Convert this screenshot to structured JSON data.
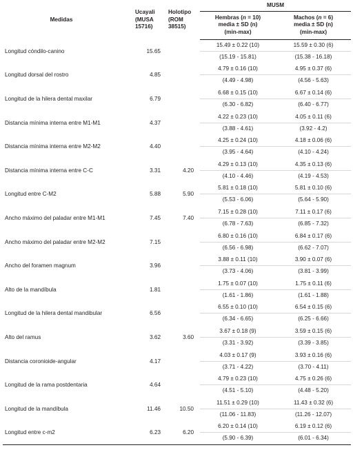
{
  "headers": {
    "medidas": "Medidas",
    "ucayali_lines": [
      "Ucayali",
      "(MUSA",
      "15716)"
    ],
    "holotipo_lines": [
      "Holotipo",
      "(ROM",
      "38515)"
    ],
    "musm": "MUSM",
    "hembras": {
      "pre": "Hembras (",
      "n": "n",
      "post": " = 10)",
      "line2": "media ± SD (n)",
      "line3": "(min-max)"
    },
    "machos": {
      "pre": "Machos (",
      "n": "n",
      "post": " = 6)",
      "line2": "media ± SD (n)",
      "line3": "(min-max)"
    }
  },
  "rows": [
    {
      "name": "Longitud cóndilo-canino",
      "ucayali": "15.65",
      "holotipo": "",
      "hembras": "15.49 ± 0.22 (10)",
      "hembras_range": "(15.19 - 15.81)",
      "machos": "15.59 ± 0.30 (6)",
      "machos_range": "(15.38 - 16.18)"
    },
    {
      "name": "Longitud dorsal del rostro",
      "ucayali": "4.85",
      "holotipo": "",
      "hembras": "4.79 ± 0.16 (10)",
      "hembras_range": "(4.49 - 4.98)",
      "machos": "4.95 ± 0.37 (6)",
      "machos_range": "(4.56 - 5.63)"
    },
    {
      "name": "Longitud de la hilera dental maxilar",
      "ucayali": "6.79",
      "holotipo": "",
      "hembras": "6.68 ± 0.15 (10)",
      "hembras_range": "(6.30 - 6.82)",
      "machos": "6.67 ± 0.14 (6)",
      "machos_range": "(6.40 - 6.77)"
    },
    {
      "name": "Distancia mínima interna entre M1-M1",
      "ucayali": "4.37",
      "holotipo": "",
      "hembras": "4.22 ± 0.23 (10)",
      "hembras_range": "(3.88 - 4.61)",
      "machos": "4.05 ± 0.11 (6)",
      "machos_range": "(3.92 - 4.2)"
    },
    {
      "name": "Distancia mínima interna entre M2-M2",
      "ucayali": "4.40",
      "holotipo": "",
      "hembras": "4.25 ± 0.24 (10)",
      "hembras_range": "(3.95 - 4.64)",
      "machos": "4.18 ± 0.06 (6)",
      "machos_range": "(4.10 - 4.24)"
    },
    {
      "name": "Distancia mínima interna entre C-C",
      "ucayali": "3.31",
      "holotipo": "4.20",
      "hembras": "4.29 ± 0.13 (10)",
      "hembras_range": "(4.10 - 4.46)",
      "machos": "4.35 ± 0.13 (6)",
      "machos_range": "(4.19 - 4.53)"
    },
    {
      "name": "Longitud entre C-M2",
      "ucayali": "5.88",
      "holotipo": "5.90",
      "hembras": "5.81 ± 0.18 (10)",
      "hembras_range": "(5.53 - 6.06)",
      "machos": "5.81 ± 0.10 (6)",
      "machos_range": "(5.64 - 5.90)"
    },
    {
      "name": "Ancho máximo del paladar entre M1-M1",
      "ucayali": "7.45",
      "holotipo": "7.40",
      "hembras": "7.15 ± 0.28 (10)",
      "hembras_range": "(6.78 - 7.63)",
      "machos": "7.11 ± 0.17 (6)",
      "machos_range": "(6.85 - 7.32)"
    },
    {
      "name": "Ancho máximo del paladar entre M2-M2",
      "ucayali": "7.15",
      "holotipo": "",
      "hembras": "6.80 ± 0.16 (10)",
      "hembras_range": "(6.56 - 6.98)",
      "machos": "6.84 ± 0.17 (6)",
      "machos_range": "(6.62 - 7.07)"
    },
    {
      "name": "Ancho del foramen magnum",
      "ucayali": "3.96",
      "holotipo": "",
      "hembras": "3.88 ± 0.11 (10)",
      "hembras_range": "(3.73 - 4.06)",
      "machos": "3.90 ± 0.07 (6)",
      "machos_range": "(3.81 - 3.99)"
    },
    {
      "name": "Alto de la mandíbula",
      "ucayali": "1.81",
      "holotipo": "",
      "hembras": "1.75 ± 0.07 (10)",
      "hembras_range": "(1.61 - 1.86)",
      "machos": "1.75 ± 0.11 (6)",
      "machos_range": "(1.61 - 1.88)"
    },
    {
      "name": "Longitud de la hilera dental mandibular",
      "ucayali": "6.56",
      "holotipo": "",
      "hembras": "6.55 ± 0.10 (10)",
      "hembras_range": "(6.34 - 6.65)",
      "machos": "6.54 ± 0.15 (6)",
      "machos_range": "(6.25 - 6.66)"
    },
    {
      "name": "Alto del ramus",
      "ucayali": "3.62",
      "holotipo": "3.60",
      "hembras": "3.67 ± 0.18 (9)",
      "hembras_range": "(3.31 - 3.92)",
      "machos": "3.59 ± 0.15 (6)",
      "machos_range": "(3.39 - 3.85)"
    },
    {
      "name": "Distancia coronioide-angular",
      "ucayali": "4.17",
      "holotipo": "",
      "hembras": "4.03 ± 0.17 (9)",
      "hembras_range": "(3.71 - 4.22)",
      "machos": "3.93 ± 0.16 (6)",
      "machos_range": "(3.70 - 4.11)"
    },
    {
      "name": "Longitud de la rama postdentaria",
      "ucayali": "4.64",
      "holotipo": "",
      "hembras": "4.79 ± 0.23 (10)",
      "hembras_range": "(4.51 - 5.10)",
      "machos": "4.75 ± 0.26 (6)",
      "machos_range": "(4.48 - 5.20)"
    },
    {
      "name": "Longitud de la mandíbula",
      "ucayali": "11.46",
      "holotipo": "10.50",
      "hembras": "11.51 ± 0.29 (10)",
      "hembras_range": "(11.06 - 11.83)",
      "machos": "11.43 ± 0.32 (6)",
      "machos_range": "(11.26 - 12.07)"
    },
    {
      "name": "Longitud entre c-m2",
      "ucayali": "6.23",
      "holotipo": "6.20",
      "hembras": "6.20 ± 0.14 (10)",
      "hembras_range": "(5.90 - 6.39)",
      "machos": "6.19 ± 0.12 (6)",
      "machos_range": "(6.01 - 6.34)"
    }
  ]
}
